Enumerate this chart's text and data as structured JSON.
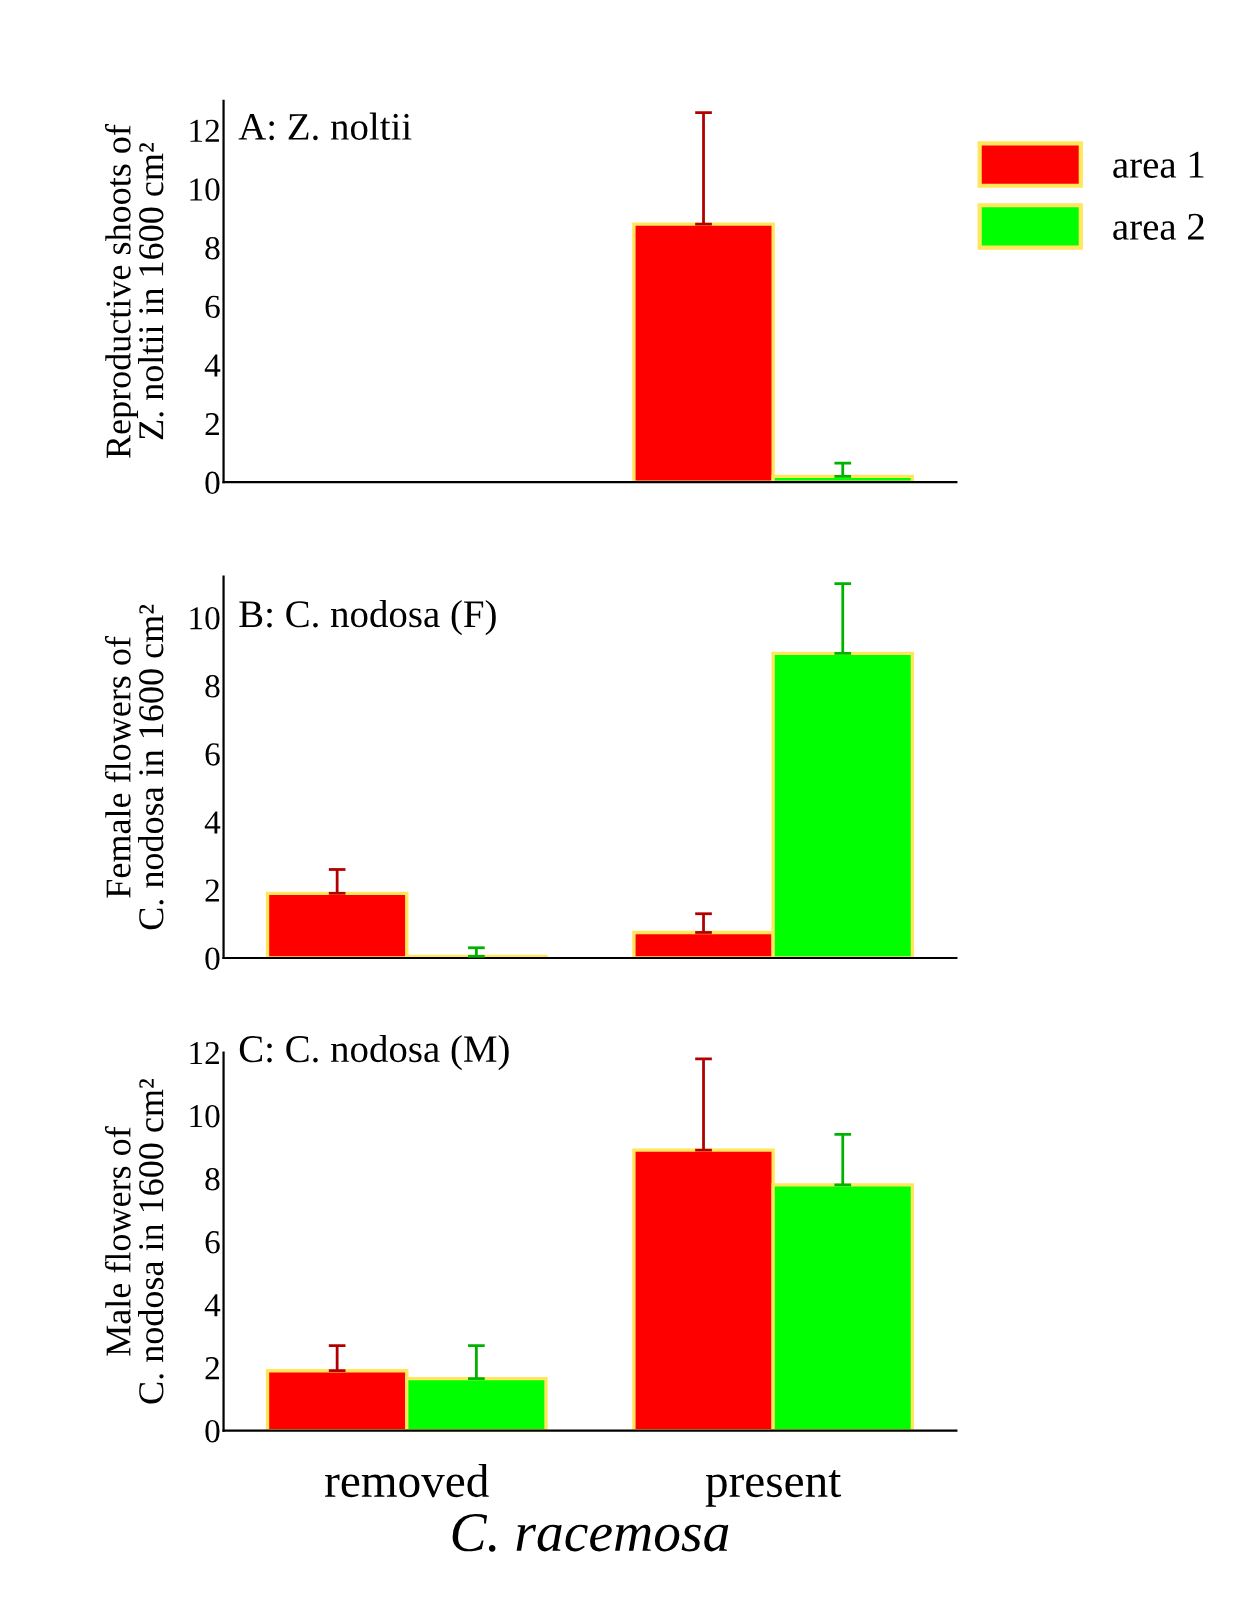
{
  "chart_data": [
    {
      "type": "bar",
      "title": "A: Z. noltii",
      "ylabel": "Reproductive shoots of\nZ. noltii in 1600 cm²",
      "categories": [
        null,
        null
      ],
      "tick_labels": "y",
      "ylim": [
        0,
        13
      ],
      "yticks": [
        0,
        2,
        4,
        6,
        8,
        10,
        12
      ],
      "grid": false,
      "legend": "top right",
      "series": [
        {
          "name": "area 1",
          "color": "#ff0000",
          "values": [
            0,
            8.8
          ],
          "errors": [
            null,
            [
              8.8,
              12.6
            ]
          ]
        },
        {
          "name": "area 2",
          "color": "#00ff00",
          "values": [
            0,
            0.2
          ],
          "errors": [
            null,
            [
              0.2,
              0.65
            ]
          ]
        }
      ]
    },
    {
      "type": "bar",
      "title": "B: C. nodosa (F)",
      "ylabel": "Female flowers of\nC. nodosa in 1600 cm²",
      "categories": [
        null,
        null
      ],
      "tick_labels": "y",
      "ylim": [
        0,
        11.2
      ],
      "yticks": [
        0,
        2,
        4,
        6,
        8,
        10
      ],
      "grid": false,
      "series": [
        {
          "color": "#ff0000",
          "values": [
            1.9,
            0.75
          ],
          "errors": [
            [
              1.9,
              2.6
            ],
            [
              0.75,
              1.3
            ]
          ]
        },
        {
          "color": "#00ff00",
          "values": [
            0.05,
            8.95
          ],
          "errors": [
            [
              0.05,
              0.3
            ],
            [
              8.95,
              11.0
            ]
          ]
        }
      ]
    },
    {
      "type": "bar",
      "title": "C: C. nodosa (M)",
      "ylabel": "Male flowers of\nC. nodosa in 1600 cm²",
      "xlabel": "C. racemosa",
      "categories": [
        "removed",
        "present"
      ],
      "ylim": [
        0,
        12
      ],
      "yticks": [
        0,
        2,
        4,
        6,
        8,
        10,
        12
      ],
      "grid": false,
      "series": [
        {
          "color": "#ff0000",
          "values": [
            1.9,
            8.9
          ],
          "errors": [
            [
              1.9,
              2.7
            ],
            [
              8.9,
              11.8
            ]
          ]
        },
        {
          "color": "#00ff00",
          "values": [
            1.65,
            7.8
          ],
          "errors": [
            [
              1.65,
              2.7
            ],
            [
              7.8,
              9.4
            ]
          ]
        }
      ]
    }
  ]
}
